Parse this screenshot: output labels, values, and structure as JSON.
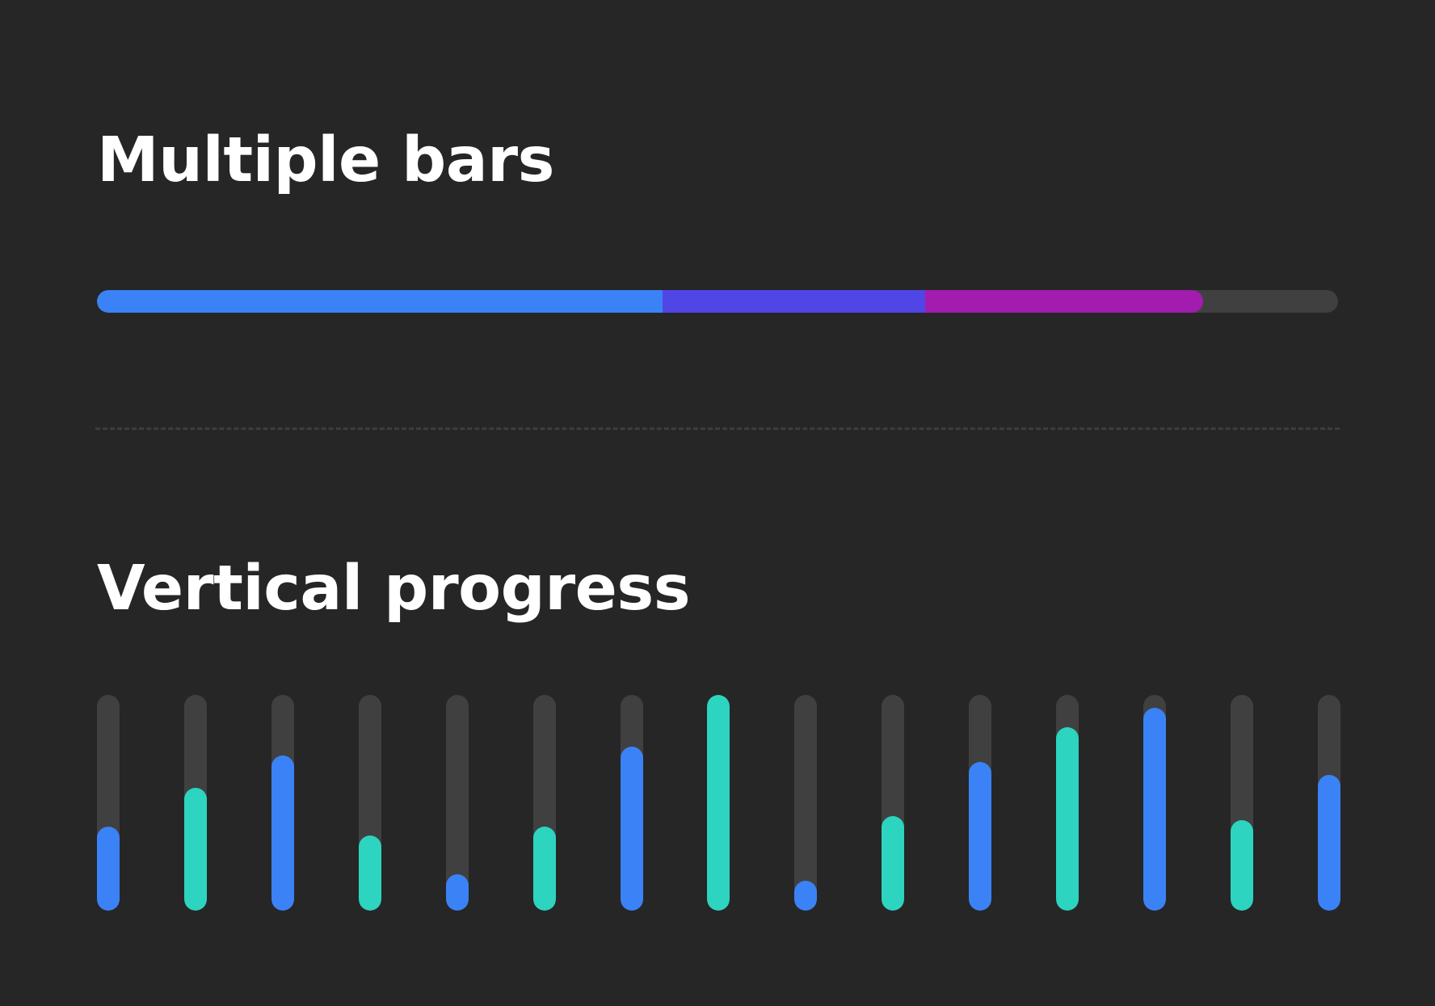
{
  "sections": {
    "multiple_title": "Multiple bars",
    "vertical_title": "Vertical progress"
  },
  "colors": {
    "background": "#262626",
    "track": "#404040",
    "divider": "#3d3d3d",
    "blue": "#3b82f6",
    "indigo": "#4f46e5",
    "purple": "#a21caf",
    "teal": "#2dd4bf"
  },
  "multiple_bars": [
    {
      "name": "segment-blue",
      "percent": 45.6,
      "color": "#3b82f6"
    },
    {
      "name": "segment-indigo",
      "percent": 21.1,
      "color": "#4f46e5"
    },
    {
      "name": "segment-purple",
      "percent": 22.4,
      "color": "#a21caf"
    }
  ],
  "vertical_progress": [
    {
      "percent": 39,
      "color": "#3b82f6"
    },
    {
      "percent": 57,
      "color": "#2dd4bf"
    },
    {
      "percent": 72,
      "color": "#3b82f6"
    },
    {
      "percent": 35,
      "color": "#2dd4bf"
    },
    {
      "percent": 17,
      "color": "#3b82f6"
    },
    {
      "percent": 39,
      "color": "#2dd4bf"
    },
    {
      "percent": 76,
      "color": "#3b82f6"
    },
    {
      "percent": 100,
      "color": "#2dd4bf"
    },
    {
      "percent": 14,
      "color": "#3b82f6"
    },
    {
      "percent": 44,
      "color": "#2dd4bf"
    },
    {
      "percent": 69,
      "color": "#3b82f6"
    },
    {
      "percent": 85,
      "color": "#2dd4bf"
    },
    {
      "percent": 94,
      "color": "#3b82f6"
    },
    {
      "percent": 42,
      "color": "#2dd4bf"
    },
    {
      "percent": 63,
      "color": "#3b82f6"
    }
  ]
}
